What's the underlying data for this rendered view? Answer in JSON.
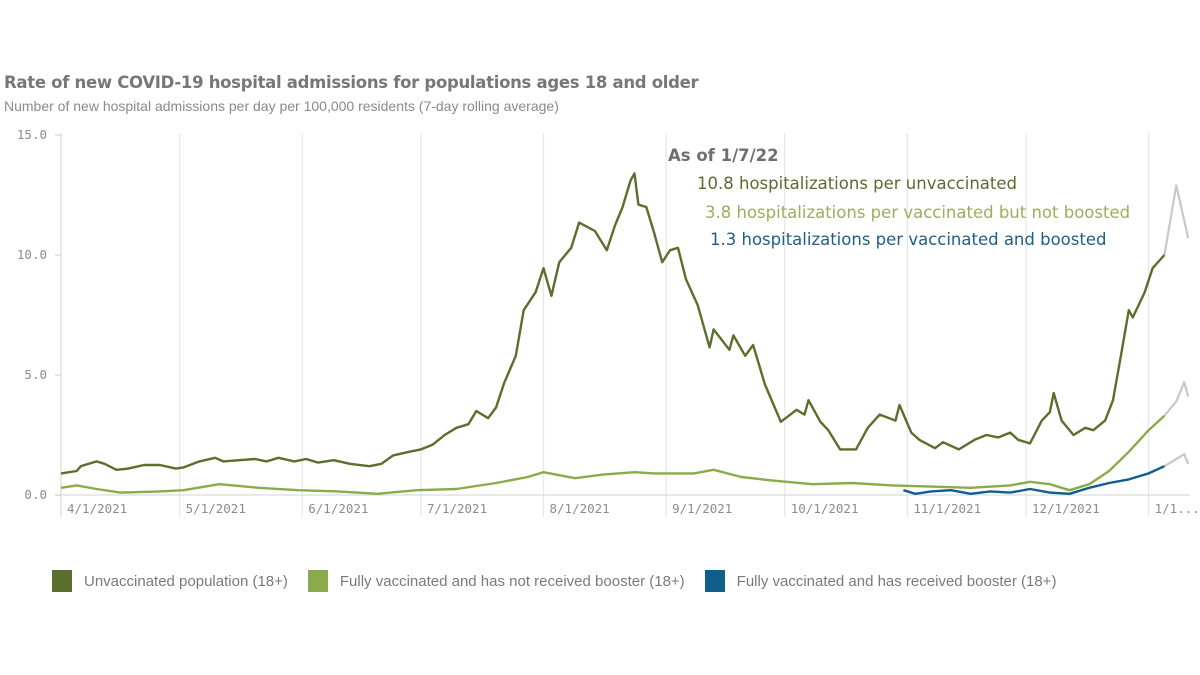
{
  "header": {
    "title": "Rate of new COVID-19 hospital admissions for populations ages 18 and older",
    "subtitle": "Number of new hospital admissions per day per 100,000 residents (7-day rolling average)"
  },
  "annotation": {
    "heading": "As of 1/7/22",
    "lines": [
      {
        "text": "10.8 hospitalizations per unvaccinated",
        "color": "#5a6b2e"
      },
      {
        "text": "3.8 hospitalizations per vaccinated but not boosted",
        "color": "#9aae5e"
      },
      {
        "text": "1.3 hospitalizations per vaccinated and boosted",
        "color": "#1f5f86"
      }
    ]
  },
  "legend": [
    {
      "label": "Unvaccinated population (18+)",
      "color": "#5b6f2c"
    },
    {
      "label": "Fully vaccinated and has not received booster (18+)",
      "color": "#8aab4a"
    },
    {
      "label": "Fully vaccinated and has received booster (18+)",
      "color": "#0f5e8c"
    }
  ],
  "chart_data": {
    "type": "line",
    "title": "Rate of new COVID-19 hospital admissions for populations ages 18 and older",
    "subtitle": "Number of new hospital admissions per day per 100,000 residents (7-day rolling average)",
    "xlabel": "",
    "ylabel": "",
    "x_unit": "days since 4/1/2021",
    "x_origin": "4/1/2021",
    "xlim": [
      0,
      285
    ],
    "ylim": [
      0,
      15
    ],
    "yticks": [
      {
        "value": 0,
        "label": "0.0"
      },
      {
        "value": 5,
        "label": "5.0"
      },
      {
        "value": 10,
        "label": "10.0"
      },
      {
        "value": 15,
        "label": "15.0"
      }
    ],
    "xticks": [
      {
        "day": 0,
        "label": "4/1/2021"
      },
      {
        "day": 30,
        "label": "5/1/2021"
      },
      {
        "day": 61,
        "label": "6/1/2021"
      },
      {
        "day": 91,
        "label": "7/1/2021"
      },
      {
        "day": 122,
        "label": "8/1/2021"
      },
      {
        "day": 153,
        "label": "9/1/2021"
      },
      {
        "day": 183,
        "label": "10/1/2021"
      },
      {
        "day": 214,
        "label": "11/1/2021"
      },
      {
        "day": 244,
        "label": "12/1/2021"
      },
      {
        "day": 275,
        "label": "1/1..."
      }
    ],
    "grid": "vertical",
    "legend_position": "bottom",
    "provisional_color": "#c8c8c8",
    "provisional_from_day": 279,
    "series": [
      {
        "name": "Unvaccinated population (18+)",
        "color": "#5b6f2c",
        "points": [
          [
            0,
            0.9
          ],
          [
            4,
            1.0
          ],
          [
            5,
            1.2
          ],
          [
            9,
            1.4
          ],
          [
            11,
            1.3
          ],
          [
            14,
            1.05
          ],
          [
            17,
            1.1
          ],
          [
            21,
            1.25
          ],
          [
            25,
            1.25
          ],
          [
            29,
            1.1
          ],
          [
            31,
            1.15
          ],
          [
            35,
            1.4
          ],
          [
            39,
            1.55
          ],
          [
            41,
            1.4
          ],
          [
            45,
            1.45
          ],
          [
            49,
            1.5
          ],
          [
            52,
            1.4
          ],
          [
            55,
            1.55
          ],
          [
            59,
            1.4
          ],
          [
            62,
            1.5
          ],
          [
            65,
            1.35
          ],
          [
            69,
            1.45
          ],
          [
            73,
            1.3
          ],
          [
            78,
            1.2
          ],
          [
            81,
            1.3
          ],
          [
            84,
            1.65
          ],
          [
            88,
            1.8
          ],
          [
            91,
            1.9
          ],
          [
            94,
            2.1
          ],
          [
            97,
            2.5
          ],
          [
            100,
            2.8
          ],
          [
            103,
            2.95
          ],
          [
            105,
            3.5
          ],
          [
            108,
            3.2
          ],
          [
            110,
            3.65
          ],
          [
            112,
            4.65
          ],
          [
            115,
            5.8
          ],
          [
            117,
            7.7
          ],
          [
            120,
            8.45
          ],
          [
            122,
            9.45
          ],
          [
            124,
            8.3
          ],
          [
            126,
            9.7
          ],
          [
            129,
            10.3
          ],
          [
            131,
            11.35
          ],
          [
            135,
            11.0
          ],
          [
            138,
            10.2
          ],
          [
            140,
            11.2
          ],
          [
            142,
            12.0
          ],
          [
            144,
            13.1
          ],
          [
            145,
            13.4
          ],
          [
            146,
            12.1
          ],
          [
            148,
            12.0
          ],
          [
            150,
            10.9
          ],
          [
            152,
            9.7
          ],
          [
            154,
            10.2
          ],
          [
            156,
            10.3
          ],
          [
            158,
            9.0
          ],
          [
            161,
            7.9
          ],
          [
            164,
            6.15
          ],
          [
            165,
            6.9
          ],
          [
            169,
            6.05
          ],
          [
            170,
            6.65
          ],
          [
            173,
            5.8
          ],
          [
            175,
            6.25
          ],
          [
            178,
            4.6
          ],
          [
            182,
            3.05
          ],
          [
            186,
            3.55
          ],
          [
            188,
            3.35
          ],
          [
            189,
            3.95
          ],
          [
            192,
            3.05
          ],
          [
            194,
            2.7
          ],
          [
            197,
            1.9
          ],
          [
            201,
            1.9
          ],
          [
            204,
            2.8
          ],
          [
            207,
            3.35
          ],
          [
            211,
            3.1
          ],
          [
            212,
            3.75
          ],
          [
            215,
            2.6
          ],
          [
            217,
            2.3
          ],
          [
            221,
            1.95
          ],
          [
            223,
            2.2
          ],
          [
            227,
            1.9
          ],
          [
            231,
            2.3
          ],
          [
            234,
            2.5
          ],
          [
            237,
            2.4
          ],
          [
            240,
            2.6
          ],
          [
            242,
            2.3
          ],
          [
            245,
            2.15
          ],
          [
            248,
            3.1
          ],
          [
            250,
            3.45
          ],
          [
            251,
            4.25
          ],
          [
            253,
            3.1
          ],
          [
            256,
            2.5
          ],
          [
            259,
            2.8
          ],
          [
            261,
            2.7
          ],
          [
            264,
            3.1
          ],
          [
            266,
            3.95
          ],
          [
            268,
            5.8
          ],
          [
            270,
            7.7
          ],
          [
            271,
            7.4
          ],
          [
            274,
            8.45
          ],
          [
            276,
            9.45
          ],
          [
            279,
            10.0
          ],
          [
            282,
            12.9
          ],
          [
            285,
            10.7
          ]
        ]
      },
      {
        "name": "Fully vaccinated and has not received booster (18+)",
        "color": "#8aab4a",
        "points": [
          [
            0,
            0.3
          ],
          [
            4,
            0.4
          ],
          [
            9,
            0.25
          ],
          [
            15,
            0.1
          ],
          [
            25,
            0.15
          ],
          [
            31,
            0.2
          ],
          [
            40,
            0.45
          ],
          [
            50,
            0.3
          ],
          [
            60,
            0.2
          ],
          [
            70,
            0.15
          ],
          [
            80,
            0.05
          ],
          [
            90,
            0.2
          ],
          [
            100,
            0.25
          ],
          [
            110,
            0.5
          ],
          [
            118,
            0.75
          ],
          [
            122,
            0.95
          ],
          [
            130,
            0.7
          ],
          [
            137,
            0.85
          ],
          [
            145,
            0.95
          ],
          [
            150,
            0.9
          ],
          [
            160,
            0.9
          ],
          [
            165,
            1.05
          ],
          [
            172,
            0.75
          ],
          [
            180,
            0.6
          ],
          [
            190,
            0.45
          ],
          [
            200,
            0.5
          ],
          [
            210,
            0.4
          ],
          [
            220,
            0.35
          ],
          [
            230,
            0.3
          ],
          [
            240,
            0.4
          ],
          [
            245,
            0.55
          ],
          [
            250,
            0.45
          ],
          [
            255,
            0.2
          ],
          [
            260,
            0.45
          ],
          [
            265,
            1.0
          ],
          [
            270,
            1.8
          ],
          [
            275,
            2.7
          ],
          [
            279,
            3.3
          ],
          [
            282,
            3.9
          ],
          [
            284,
            4.7
          ],
          [
            285,
            4.1
          ]
        ]
      },
      {
        "name": "Fully vaccinated and has received booster (18+)",
        "color": "#0f5e8c",
        "points": [
          [
            213,
            0.2
          ],
          [
            216,
            0.05
          ],
          [
            220,
            0.15
          ],
          [
            225,
            0.2
          ],
          [
            230,
            0.05
          ],
          [
            235,
            0.15
          ],
          [
            240,
            0.1
          ],
          [
            245,
            0.25
          ],
          [
            250,
            0.1
          ],
          [
            255,
            0.05
          ],
          [
            260,
            0.3
          ],
          [
            265,
            0.5
          ],
          [
            270,
            0.65
          ],
          [
            275,
            0.9
          ],
          [
            279,
            1.2
          ],
          [
            282,
            1.5
          ],
          [
            284,
            1.7
          ],
          [
            285,
            1.3
          ]
        ]
      }
    ]
  }
}
